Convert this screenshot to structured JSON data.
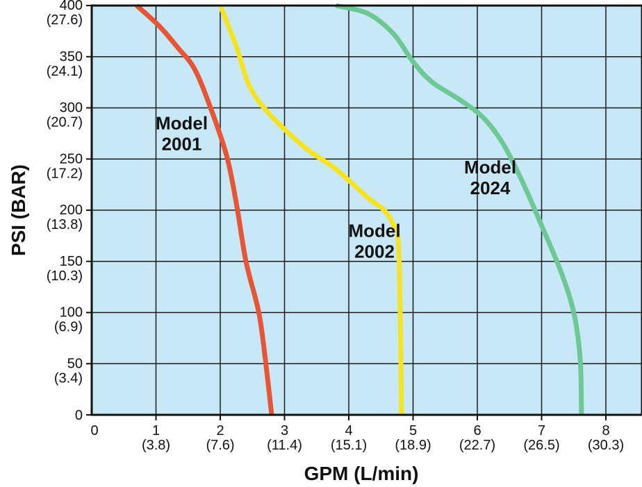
{
  "chart_data": {
    "type": "line",
    "xlabel": "GPM (L/min)",
    "ylabel": "PSI (BAR)",
    "xlim": [
      0,
      9
    ],
    "ylim": [
      0,
      400
    ],
    "grid": true,
    "plot_background": "#c8e8f8",
    "x_ticks": [
      {
        "value": 0,
        "label": "0",
        "sub": ""
      },
      {
        "value": 1,
        "label": "1",
        "sub": "(3.8)"
      },
      {
        "value": 2,
        "label": "2",
        "sub": "(7.6)"
      },
      {
        "value": 3,
        "label": "3",
        "sub": "(11.4)"
      },
      {
        "value": 4,
        "label": "4",
        "sub": "(15.1)"
      },
      {
        "value": 5,
        "label": "5",
        "sub": "(18.9)"
      },
      {
        "value": 6,
        "label": "6",
        "sub": "(22.7)"
      },
      {
        "value": 7,
        "label": "7",
        "sub": "(26.5)"
      },
      {
        "value": 8,
        "label": "8",
        "sub": "(30.3)"
      }
    ],
    "y_ticks": [
      {
        "value": 0,
        "label": "0",
        "sub": ""
      },
      {
        "value": 50,
        "label": "50",
        "sub": "(3.4)"
      },
      {
        "value": 100,
        "label": "100",
        "sub": "(6.9)"
      },
      {
        "value": 150,
        "label": "150",
        "sub": "(10.3)"
      },
      {
        "value": 200,
        "label": "200",
        "sub": "(13.8)"
      },
      {
        "value": 250,
        "label": "250",
        "sub": "(17.2)"
      },
      {
        "value": 300,
        "label": "300",
        "sub": "(20.7)"
      },
      {
        "value": 350,
        "label": "350",
        "sub": "(24.1)"
      },
      {
        "value": 400,
        "label": "400",
        "sub": "(27.6)"
      }
    ],
    "series": [
      {
        "name": "Model 2001",
        "label_lines": [
          "Model",
          "2001"
        ],
        "label_at": {
          "x": 1.4,
          "y": 279
        },
        "color": "#e65535",
        "points": [
          {
            "x": 0.7,
            "y": 400
          },
          {
            "x": 1.05,
            "y": 380
          },
          {
            "x": 1.35,
            "y": 358
          },
          {
            "x": 1.6,
            "y": 338
          },
          {
            "x": 1.85,
            "y": 300
          },
          {
            "x": 2.1,
            "y": 253
          },
          {
            "x": 2.25,
            "y": 207
          },
          {
            "x": 2.4,
            "y": 150
          },
          {
            "x": 2.6,
            "y": 100
          },
          {
            "x": 2.7,
            "y": 55
          },
          {
            "x": 2.8,
            "y": 0
          }
        ]
      },
      {
        "name": "Model 2002",
        "label_lines": [
          "Model",
          "2002"
        ],
        "label_at": {
          "x": 4.4,
          "y": 174
        },
        "color": "#f5e326",
        "points": [
          {
            "x": 2.0,
            "y": 400
          },
          {
            "x": 2.25,
            "y": 360
          },
          {
            "x": 2.45,
            "y": 322
          },
          {
            "x": 2.75,
            "y": 295
          },
          {
            "x": 3.3,
            "y": 262
          },
          {
            "x": 3.8,
            "y": 240
          },
          {
            "x": 4.3,
            "y": 212
          },
          {
            "x": 4.55,
            "y": 200
          },
          {
            "x": 4.7,
            "y": 185
          },
          {
            "x": 4.77,
            "y": 170
          },
          {
            "x": 4.8,
            "y": 100
          },
          {
            "x": 4.82,
            "y": 0
          }
        ]
      },
      {
        "name": "Model 2024",
        "label_lines": [
          "Model",
          "2024"
        ],
        "label_at": {
          "x": 6.2,
          "y": 236
        },
        "color": "#6ec896",
        "points": [
          {
            "x": 3.8,
            "y": 400
          },
          {
            "x": 4.3,
            "y": 392
          },
          {
            "x": 4.7,
            "y": 372
          },
          {
            "x": 5.0,
            "y": 345
          },
          {
            "x": 5.3,
            "y": 325
          },
          {
            "x": 5.75,
            "y": 307
          },
          {
            "x": 6.1,
            "y": 290
          },
          {
            "x": 6.4,
            "y": 265
          },
          {
            "x": 6.7,
            "y": 228
          },
          {
            "x": 7.0,
            "y": 185
          },
          {
            "x": 7.3,
            "y": 140
          },
          {
            "x": 7.5,
            "y": 100
          },
          {
            "x": 7.6,
            "y": 55
          },
          {
            "x": 7.62,
            "y": 0
          }
        ]
      }
    ]
  }
}
